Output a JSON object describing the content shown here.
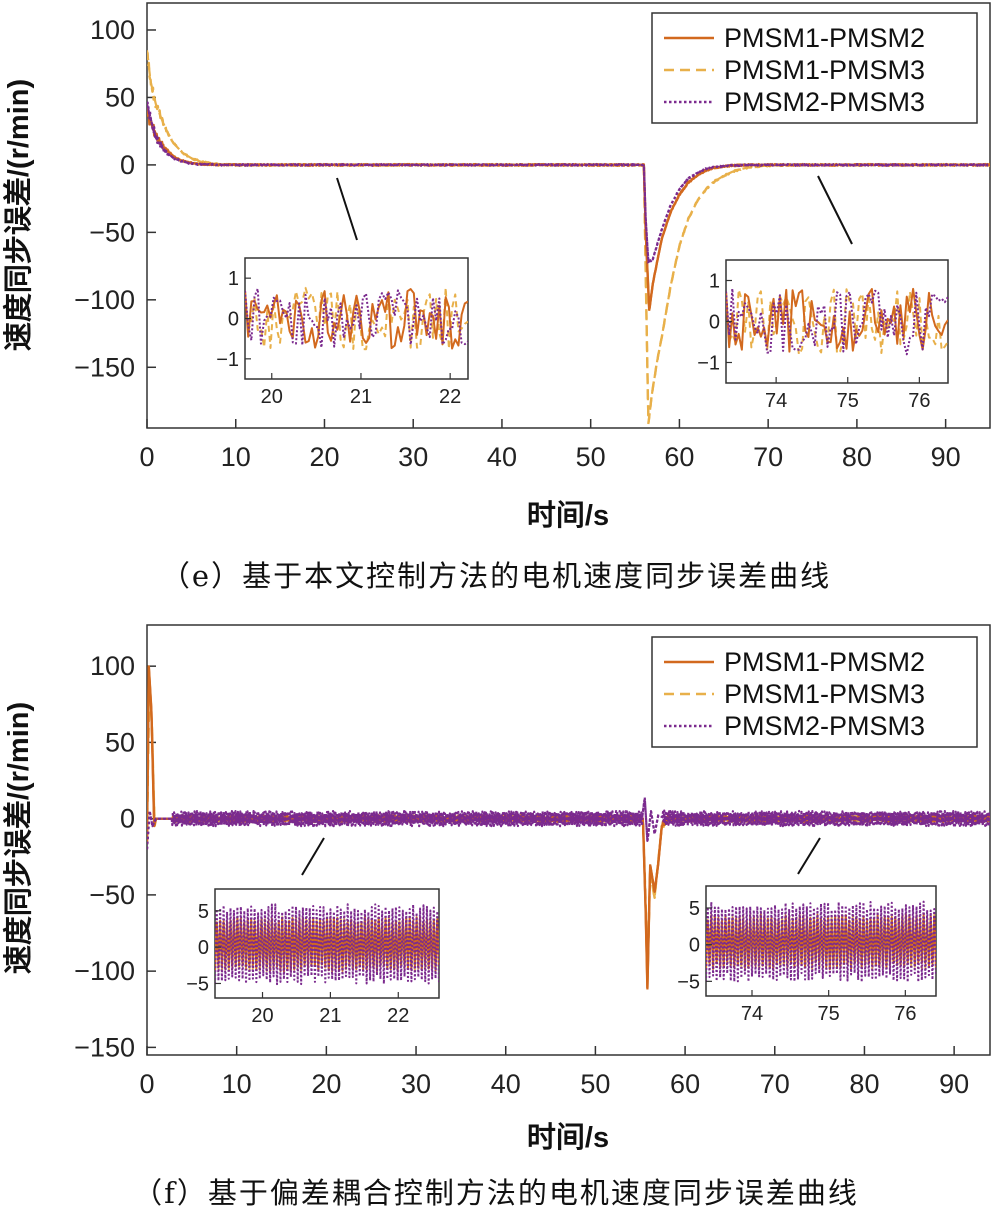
{
  "chart_data": [
    {
      "type": "line",
      "caption": "（e）基于本文控制方法的电机速度同步误差曲线",
      "xlabel": "时间/s",
      "ylabel": "速度同步误差/(r/min)",
      "xlim": [
        0,
        95
      ],
      "ylim": [
        -195,
        120
      ],
      "xticks": [
        0,
        10,
        20,
        30,
        40,
        50,
        60,
        70,
        80,
        90
      ],
      "yticks": [
        100,
        50,
        0,
        -50,
        -100,
        -150
      ],
      "legend_position": "top-right",
      "series": [
        {
          "name": "PMSM1-PMSM2",
          "color": "#d2691e",
          "dash": "solid",
          "points": [
            [
              0,
              40
            ],
            [
              0.5,
              30
            ],
            [
              1,
              22
            ],
            [
              2,
              12
            ],
            [
              3,
              6
            ],
            [
              4,
              3
            ],
            [
              5,
              1.5
            ],
            [
              6,
              0.6
            ],
            [
              8,
              0.2
            ],
            [
              10,
              0
            ],
            [
              56,
              0
            ],
            [
              56.2,
              -50
            ],
            [
              56.6,
              -108
            ],
            [
              57,
              -88
            ],
            [
              58,
              -55
            ],
            [
              59,
              -35
            ],
            [
              60,
              -22
            ],
            [
              61,
              -13
            ],
            [
              62,
              -8
            ],
            [
              63,
              -4
            ],
            [
              64,
              -2
            ],
            [
              66,
              -0.5
            ],
            [
              68,
              0
            ],
            [
              95,
              0
            ]
          ]
        },
        {
          "name": "PMSM1-PMSM3",
          "color": "#e8b04a",
          "dash": "dashed",
          "points": [
            [
              0,
              85
            ],
            [
              0.4,
              62
            ],
            [
              1,
              45
            ],
            [
              2,
              28
            ],
            [
              3,
              16
            ],
            [
              4,
              9
            ],
            [
              5,
              5
            ],
            [
              6,
              2.5
            ],
            [
              7,
              1.2
            ],
            [
              8,
              0.5
            ],
            [
              10,
              0
            ],
            [
              56,
              0
            ],
            [
              56.2,
              -80
            ],
            [
              56.5,
              -192
            ],
            [
              56.9,
              -170
            ],
            [
              57.5,
              -145
            ],
            [
              58,
              -128
            ],
            [
              59,
              -90
            ],
            [
              60,
              -60
            ],
            [
              61,
              -40
            ],
            [
              62,
              -27
            ],
            [
              63,
              -18
            ],
            [
              64,
              -12
            ],
            [
              65,
              -8
            ],
            [
              66,
              -5
            ],
            [
              67,
              -3
            ],
            [
              68,
              -1.5
            ],
            [
              70,
              -0.5
            ],
            [
              72,
              0
            ],
            [
              95,
              0
            ]
          ]
        },
        {
          "name": "PMSM2-PMSM3",
          "color": "#7b2a8e",
          "dash": "dotted",
          "points": [
            [
              0,
              45
            ],
            [
              0.5,
              32
            ],
            [
              1,
              20
            ],
            [
              2,
              10
            ],
            [
              3,
              5
            ],
            [
              4,
              2.5
            ],
            [
              5,
              1
            ],
            [
              6,
              0.4
            ],
            [
              8,
              0.1
            ],
            [
              10,
              0
            ],
            [
              56,
              0
            ],
            [
              56.2,
              -40
            ],
            [
              56.5,
              -72
            ],
            [
              57,
              -70
            ],
            [
              58,
              -48
            ],
            [
              59,
              -30
            ],
            [
              60,
              -18
            ],
            [
              61,
              -10
            ],
            [
              62,
              -6
            ],
            [
              63,
              -3
            ],
            [
              64,
              -1.5
            ],
            [
              66,
              -0.4
            ],
            [
              68,
              0
            ],
            [
              95,
              0
            ]
          ]
        }
      ],
      "insets": [
        {
          "xlim": [
            19.7,
            22.2
          ],
          "ylim": [
            -1.5,
            1.5
          ],
          "xticks": [
            20,
            21,
            22
          ],
          "yticks": [
            1,
            0,
            -1
          ],
          "noise_amplitude": 0.9
        },
        {
          "xlim": [
            73.3,
            76.4
          ],
          "ylim": [
            -1.5,
            1.5
          ],
          "xticks": [
            74,
            75,
            76
          ],
          "yticks": [
            1,
            0,
            -1
          ],
          "noise_amplitude": 0.95
        }
      ]
    },
    {
      "type": "line",
      "caption": "（f）基于偏差耦合控制方法的电机速度同步误差曲线",
      "xlabel": "时间/s",
      "ylabel": "速度同步误差/(r/min)",
      "xlim": [
        0,
        94
      ],
      "ylim": [
        -155,
        127
      ],
      "xticks": [
        0,
        10,
        20,
        30,
        40,
        50,
        60,
        70,
        80,
        90
      ],
      "yticks": [
        100,
        50,
        0,
        -50,
        -100,
        -150
      ],
      "legend_position": "top-right",
      "steady_band_amplitude": 5,
      "series": [
        {
          "name": "PMSM1-PMSM2",
          "color": "#d2691e",
          "dash": "solid",
          "points": [
            [
              0,
              -15
            ],
            [
              0.2,
              100
            ],
            [
              0.5,
              70
            ],
            [
              0.8,
              -5
            ],
            [
              1,
              0
            ],
            [
              2,
              0
            ],
            [
              55.3,
              0
            ],
            [
              55.6,
              -60
            ],
            [
              55.8,
              -112
            ],
            [
              56.1,
              -30
            ],
            [
              56.6,
              -48
            ],
            [
              57,
              -30
            ],
            [
              57.4,
              -5
            ],
            [
              58,
              0
            ],
            [
              94,
              0
            ]
          ]
        },
        {
          "name": "PMSM1-PMSM3",
          "color": "#e8b04a",
          "dash": "dashed",
          "points": [
            [
              0,
              -10
            ],
            [
              0.25,
              90
            ],
            [
              0.55,
              60
            ],
            [
              0.85,
              -5
            ],
            [
              1,
              0
            ],
            [
              2,
              0
            ],
            [
              55.3,
              0
            ],
            [
              55.6,
              -55
            ],
            [
              55.8,
              -105
            ],
            [
              56.1,
              -35
            ],
            [
              56.6,
              -52
            ],
            [
              57,
              -28
            ],
            [
              57.4,
              -5
            ],
            [
              58,
              0
            ],
            [
              94,
              0
            ]
          ]
        },
        {
          "name": "PMSM2-PMSM3",
          "color": "#7b2a8e",
          "dash": "dotted",
          "points": [
            [
              0,
              -20
            ],
            [
              0.3,
              5
            ],
            [
              0.6,
              -5
            ],
            [
              1,
              0
            ],
            [
              2,
              0
            ],
            [
              55.2,
              0
            ],
            [
              55.5,
              14
            ],
            [
              55.8,
              -15
            ],
            [
              56.2,
              5
            ],
            [
              56.6,
              -10
            ],
            [
              57,
              2
            ],
            [
              58,
              0
            ],
            [
              94,
              0
            ]
          ]
        }
      ],
      "insets": [
        {
          "xlim": [
            19.3,
            22.6
          ],
          "ylim": [
            -7,
            8
          ],
          "xticks": [
            20,
            21,
            22
          ],
          "yticks": [
            5,
            0,
            -5
          ],
          "noise_amplitude": 5
        },
        {
          "xlim": [
            73.4,
            76.4
          ],
          "ylim": [
            -7,
            8
          ],
          "xticks": [
            74,
            75,
            76
          ],
          "yticks": [
            5,
            0,
            -5
          ],
          "noise_amplitude": 5
        }
      ]
    }
  ]
}
